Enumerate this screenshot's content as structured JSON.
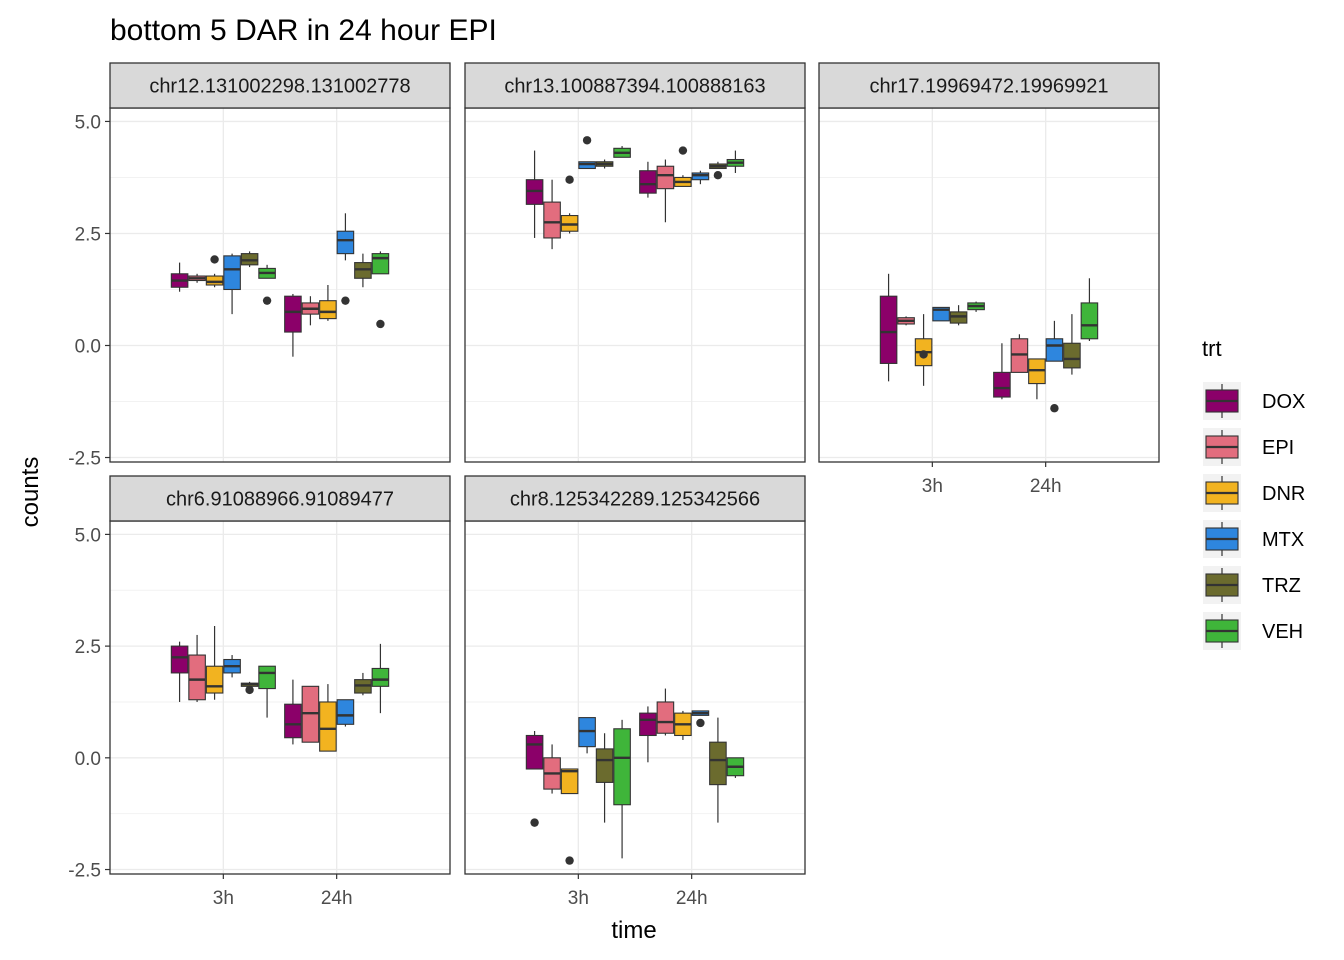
{
  "chart_data": {
    "type": "boxplot",
    "title": "bottom 5 DAR in 24 hour EPI",
    "xlabel": "time",
    "ylabel": "counts",
    "x_categories": [
      "3h",
      "24h"
    ],
    "ylim": [
      -2.6,
      5.3
    ],
    "y_ticks": [
      5.0,
      2.5,
      0.0,
      -2.5
    ],
    "y_tick_labels": [
      "5.0",
      "2.5",
      "0.0",
      "-2.5"
    ],
    "grid": true,
    "legend": {
      "title": "trt",
      "placement": "right",
      "entries": [
        {
          "name": "DOX",
          "color": "#8B0069"
        },
        {
          "name": "EPI",
          "color": "#E26D7E"
        },
        {
          "name": "DNR",
          "color": "#F2B320"
        },
        {
          "name": "MTX",
          "color": "#2E86DE"
        },
        {
          "name": "TRZ",
          "color": "#6B6B2E"
        },
        {
          "name": "VEH",
          "color": "#3FB53A"
        }
      ]
    },
    "panels": [
      {
        "label": "chr12.131002298.131002778",
        "groups": {
          "3h": [
            {
              "trt": "DOX",
              "min": 1.2,
              "q1": 1.3,
              "median": 1.45,
              "q3": 1.6,
              "max": 1.85,
              "outliers": []
            },
            {
              "trt": "EPI",
              "min": 1.4,
              "q1": 1.45,
              "median": 1.5,
              "q3": 1.55,
              "max": 1.6,
              "outliers": []
            },
            {
              "trt": "DNR",
              "min": 1.3,
              "q1": 1.35,
              "median": 1.42,
              "q3": 1.55,
              "max": 1.6,
              "outliers": [
                1.92
              ]
            },
            {
              "trt": "MTX",
              "min": 0.7,
              "q1": 1.25,
              "median": 1.7,
              "q3": 2.0,
              "max": 2.05,
              "outliers": []
            },
            {
              "trt": "TRZ",
              "min": 1.75,
              "q1": 1.8,
              "median": 1.9,
              "q3": 2.05,
              "max": 2.1,
              "outliers": []
            },
            {
              "trt": "VEH",
              "min": 1.5,
              "q1": 1.5,
              "median": 1.62,
              "q3": 1.72,
              "max": 1.8,
              "outliers": [
                1.0
              ]
            }
          ],
          "24h": [
            {
              "trt": "DOX",
              "min": -0.25,
              "q1": 0.3,
              "median": 0.75,
              "q3": 1.1,
              "max": 1.15,
              "outliers": []
            },
            {
              "trt": "EPI",
              "min": 0.45,
              "q1": 0.7,
              "median": 0.82,
              "q3": 0.95,
              "max": 1.1,
              "outliers": []
            },
            {
              "trt": "DNR",
              "min": 0.55,
              "q1": 0.6,
              "median": 0.75,
              "q3": 1.0,
              "max": 1.35,
              "outliers": []
            },
            {
              "trt": "MTX",
              "min": 1.9,
              "q1": 2.05,
              "median": 2.35,
              "q3": 2.55,
              "max": 2.95,
              "outliers": [
                1.0
              ]
            },
            {
              "trt": "TRZ",
              "min": 1.3,
              "q1": 1.5,
              "median": 1.7,
              "q3": 1.85,
              "max": 2.05,
              "outliers": []
            },
            {
              "trt": "VEH",
              "min": 1.6,
              "q1": 1.6,
              "median": 1.95,
              "q3": 2.05,
              "max": 2.1,
              "outliers": [
                0.48
              ]
            }
          ]
        }
      },
      {
        "label": "chr13.100887394.100888163",
        "groups": {
          "3h": [
            {
              "trt": "DOX",
              "min": 2.4,
              "q1": 3.15,
              "median": 3.45,
              "q3": 3.7,
              "max": 4.35,
              "outliers": []
            },
            {
              "trt": "EPI",
              "min": 2.15,
              "q1": 2.4,
              "median": 2.75,
              "q3": 3.2,
              "max": 3.7,
              "outliers": []
            },
            {
              "trt": "DNR",
              "min": 2.5,
              "q1": 2.55,
              "median": 2.7,
              "q3": 2.9,
              "max": 2.95,
              "outliers": [
                3.7
              ]
            },
            {
              "trt": "MTX",
              "min": 3.95,
              "q1": 3.95,
              "median": 4.05,
              "q3": 4.1,
              "max": 4.1,
              "outliers": [
                4.58
              ]
            },
            {
              "trt": "TRZ",
              "min": 3.95,
              "q1": 4.0,
              "median": 4.05,
              "q3": 4.1,
              "max": 4.15,
              "outliers": []
            },
            {
              "trt": "VEH",
              "min": 4.2,
              "q1": 4.2,
              "median": 4.3,
              "q3": 4.4,
              "max": 4.45,
              "outliers": []
            }
          ],
          "24h": [
            {
              "trt": "DOX",
              "min": 3.3,
              "q1": 3.4,
              "median": 3.6,
              "q3": 3.9,
              "max": 4.1,
              "outliers": []
            },
            {
              "trt": "EPI",
              "min": 2.75,
              "q1": 3.5,
              "median": 3.8,
              "q3": 4.0,
              "max": 4.15,
              "outliers": []
            },
            {
              "trt": "DNR",
              "min": 3.55,
              "q1": 3.55,
              "median": 3.65,
              "q3": 3.75,
              "max": 3.8,
              "outliers": [
                4.35
              ]
            },
            {
              "trt": "MTX",
              "min": 3.6,
              "q1": 3.7,
              "median": 3.8,
              "q3": 3.85,
              "max": 3.9,
              "outliers": []
            },
            {
              "trt": "TRZ",
              "min": 3.95,
              "q1": 3.95,
              "median": 4.0,
              "q3": 4.05,
              "max": 4.1,
              "outliers": [
                3.8
              ]
            },
            {
              "trt": "VEH",
              "min": 3.85,
              "q1": 4.0,
              "median": 4.08,
              "q3": 4.15,
              "max": 4.35,
              "outliers": []
            }
          ]
        }
      },
      {
        "label": "chr17.19969472.19969921",
        "groups": {
          "3h": [
            {
              "trt": "DOX",
              "min": -0.8,
              "q1": -0.4,
              "median": 0.3,
              "q3": 1.1,
              "max": 1.6,
              "outliers": []
            },
            {
              "trt": "EPI",
              "min": 0.45,
              "q1": 0.48,
              "median": 0.55,
              "q3": 0.62,
              "max": 0.65,
              "outliers": []
            },
            {
              "trt": "DNR",
              "min": -0.9,
              "q1": -0.45,
              "median": -0.15,
              "q3": 0.15,
              "max": 0.7,
              "outliers": [
                -0.2
              ]
            },
            {
              "trt": "MTX",
              "min": 0.55,
              "q1": 0.55,
              "median": 0.8,
              "q3": 0.85,
              "max": 0.85,
              "outliers": []
            },
            {
              "trt": "TRZ",
              "min": 0.45,
              "q1": 0.5,
              "median": 0.65,
              "q3": 0.75,
              "max": 0.9,
              "outliers": []
            },
            {
              "trt": "VEH",
              "min": 0.75,
              "q1": 0.8,
              "median": 0.88,
              "q3": 0.95,
              "max": 0.98,
              "outliers": []
            }
          ],
          "24h": [
            {
              "trt": "DOX",
              "min": -1.2,
              "q1": -1.15,
              "median": -0.95,
              "q3": -0.6,
              "max": 0.05,
              "outliers": []
            },
            {
              "trt": "EPI",
              "min": -0.6,
              "q1": -0.6,
              "median": -0.2,
              "q3": 0.15,
              "max": 0.25,
              "outliers": []
            },
            {
              "trt": "DNR",
              "min": -1.2,
              "q1": -0.85,
              "median": -0.55,
              "q3": -0.3,
              "max": -0.3,
              "outliers": []
            },
            {
              "trt": "MTX",
              "min": -0.35,
              "q1": -0.35,
              "median": 0.0,
              "q3": 0.15,
              "max": 0.55,
              "outliers": [
                -1.4
              ]
            },
            {
              "trt": "TRZ",
              "min": -0.65,
              "q1": -0.5,
              "median": -0.3,
              "q3": 0.05,
              "max": 0.7,
              "outliers": []
            },
            {
              "trt": "VEH",
              "min": 0.1,
              "q1": 0.15,
              "median": 0.45,
              "q3": 0.95,
              "max": 1.5,
              "outliers": []
            }
          ]
        }
      },
      {
        "label": "chr6.91088966.91089477",
        "groups": {
          "3h": [
            {
              "trt": "DOX",
              "min": 1.25,
              "q1": 1.9,
              "median": 2.25,
              "q3": 2.5,
              "max": 2.6,
              "outliers": []
            },
            {
              "trt": "EPI",
              "min": 1.25,
              "q1": 1.3,
              "median": 1.75,
              "q3": 2.3,
              "max": 2.75,
              "outliers": []
            },
            {
              "trt": "DNR",
              "min": 1.3,
              "q1": 1.45,
              "median": 1.6,
              "q3": 2.05,
              "max": 2.95,
              "outliers": []
            },
            {
              "trt": "MTX",
              "min": 1.8,
              "q1": 1.9,
              "median": 2.05,
              "q3": 2.2,
              "max": 2.3,
              "outliers": []
            },
            {
              "trt": "TRZ",
              "min": 1.6,
              "q1": 1.6,
              "median": 1.65,
              "q3": 1.67,
              "max": 1.7,
              "outliers": [
                1.52
              ]
            },
            {
              "trt": "VEH",
              "min": 0.9,
              "q1": 1.55,
              "median": 1.9,
              "q3": 2.05,
              "max": 2.05,
              "outliers": []
            }
          ],
          "24h": [
            {
              "trt": "DOX",
              "min": 0.3,
              "q1": 0.45,
              "median": 0.75,
              "q3": 1.2,
              "max": 1.75,
              "outliers": []
            },
            {
              "trt": "EPI",
              "min": 0.35,
              "q1": 0.35,
              "median": 1.0,
              "q3": 1.6,
              "max": 1.6,
              "outliers": []
            },
            {
              "trt": "DNR",
              "min": 0.15,
              "q1": 0.15,
              "median": 0.65,
              "q3": 1.25,
              "max": 1.65,
              "outliers": []
            },
            {
              "trt": "MTX",
              "min": 0.7,
              "q1": 0.75,
              "median": 0.95,
              "q3": 1.3,
              "max": 1.3,
              "outliers": []
            },
            {
              "trt": "TRZ",
              "min": 1.4,
              "q1": 1.45,
              "median": 1.62,
              "q3": 1.75,
              "max": 1.9,
              "outliers": []
            },
            {
              "trt": "VEH",
              "min": 1.0,
              "q1": 1.6,
              "median": 1.75,
              "q3": 2.0,
              "max": 2.55,
              "outliers": []
            }
          ]
        }
      },
      {
        "label": "chr8.125342289.125342566",
        "groups": {
          "3h": [
            {
              "trt": "DOX",
              "min": -0.25,
              "q1": -0.25,
              "median": 0.3,
              "q3": 0.5,
              "max": 0.6,
              "outliers": [
                -1.45
              ]
            },
            {
              "trt": "EPI",
              "min": -0.8,
              "q1": -0.7,
              "median": -0.35,
              "q3": 0.0,
              "max": 0.3,
              "outliers": []
            },
            {
              "trt": "DNR",
              "min": -0.8,
              "q1": -0.8,
              "median": -0.3,
              "q3": -0.25,
              "max": -0.25,
              "outliers": [
                -2.3
              ]
            },
            {
              "trt": "MTX",
              "min": 0.1,
              "q1": 0.25,
              "median": 0.6,
              "q3": 0.9,
              "max": 0.9,
              "outliers": []
            },
            {
              "trt": "TRZ",
              "min": -1.45,
              "q1": -0.55,
              "median": -0.05,
              "q3": 0.2,
              "max": 0.55,
              "outliers": []
            },
            {
              "trt": "VEH",
              "min": -2.25,
              "q1": -1.05,
              "median": 0.0,
              "q3": 0.65,
              "max": 0.85,
              "outliers": []
            }
          ],
          "24h": [
            {
              "trt": "DOX",
              "min": -0.1,
              "q1": 0.5,
              "median": 0.85,
              "q3": 1.0,
              "max": 1.15,
              "outliers": []
            },
            {
              "trt": "EPI",
              "min": 0.5,
              "q1": 0.55,
              "median": 0.8,
              "q3": 1.25,
              "max": 1.55,
              "outliers": []
            },
            {
              "trt": "DNR",
              "min": 0.4,
              "q1": 0.5,
              "median": 0.75,
              "q3": 1.0,
              "max": 1.05,
              "outliers": []
            },
            {
              "trt": "MTX",
              "min": 0.95,
              "q1": 0.95,
              "median": 1.0,
              "q3": 1.05,
              "max": 1.05,
              "outliers": [
                0.78
              ]
            },
            {
              "trt": "TRZ",
              "min": -1.45,
              "q1": -0.6,
              "median": -0.05,
              "q3": 0.35,
              "max": 0.9,
              "outliers": []
            },
            {
              "trt": "VEH",
              "min": -0.45,
              "q1": -0.4,
              "median": -0.2,
              "q3": 0.0,
              "max": 0.0,
              "outliers": []
            }
          ]
        }
      }
    ]
  }
}
